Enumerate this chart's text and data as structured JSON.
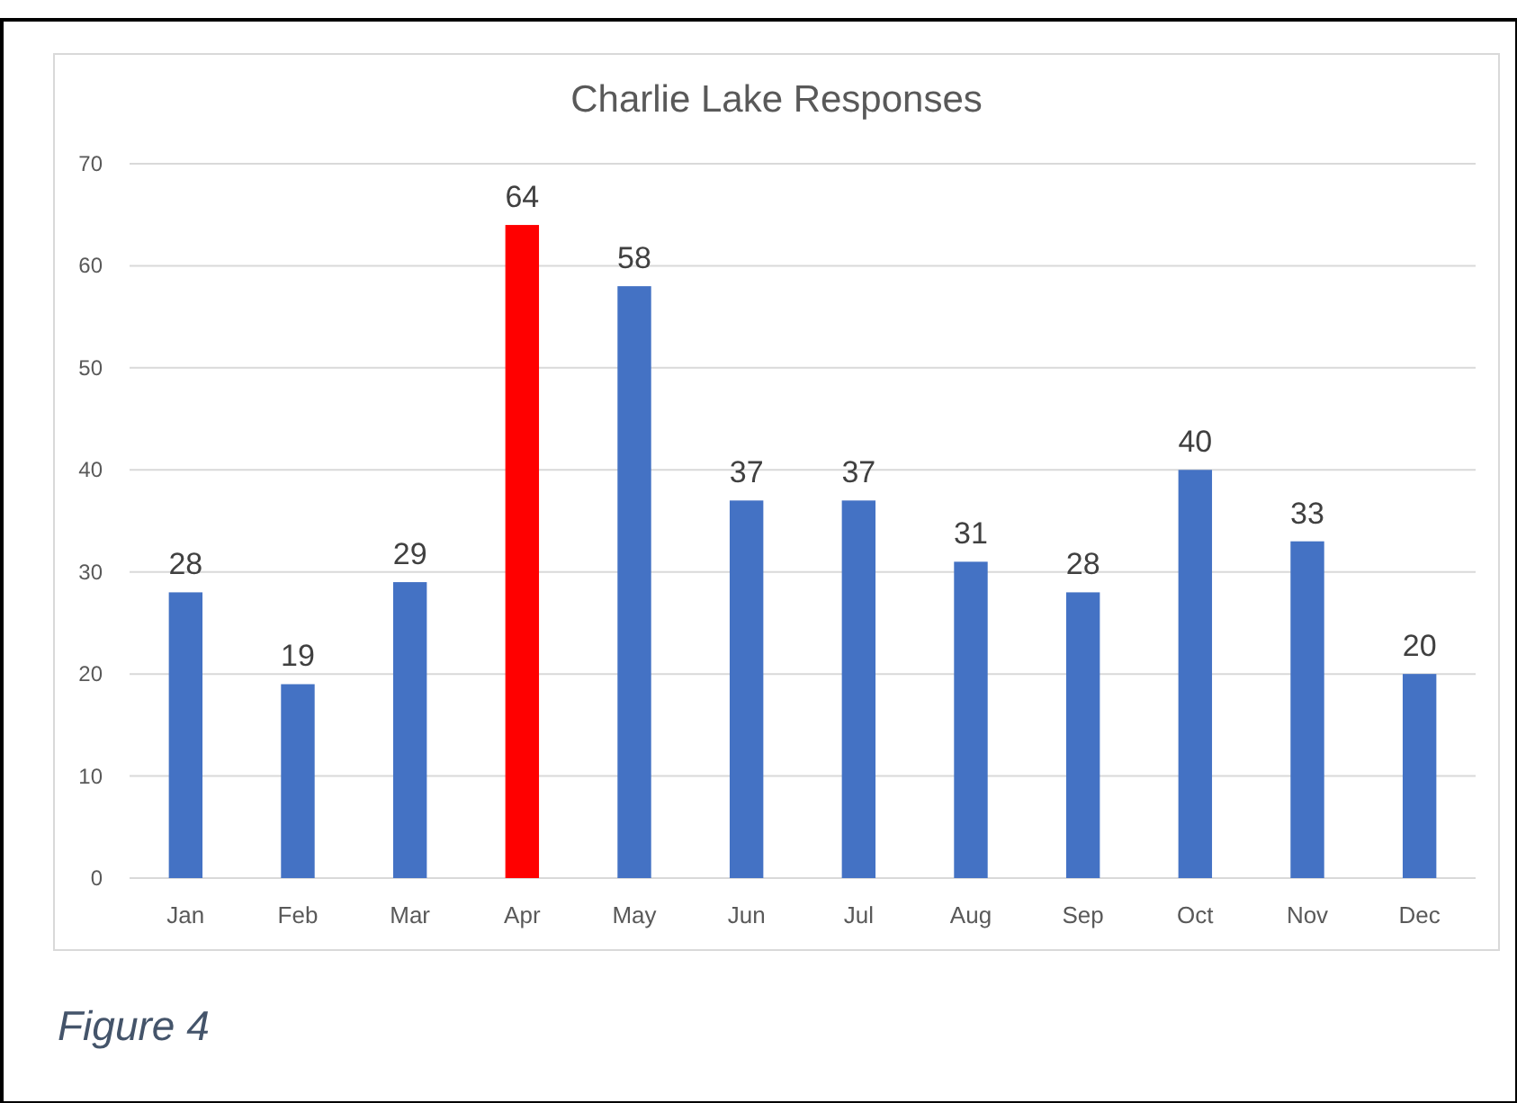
{
  "chart_data": {
    "type": "bar",
    "title": "Charlie Lake Responses",
    "categories": [
      "Jan",
      "Feb",
      "Mar",
      "Apr",
      "May",
      "Jun",
      "Jul",
      "Aug",
      "Sep",
      "Oct",
      "Nov",
      "Dec"
    ],
    "values": [
      28,
      19,
      29,
      64,
      58,
      37,
      37,
      31,
      28,
      40,
      33,
      20
    ],
    "colors": [
      "#4472c4",
      "#4472c4",
      "#4472c4",
      "#ff0000",
      "#4472c4",
      "#4472c4",
      "#4472c4",
      "#4472c4",
      "#4472c4",
      "#4472c4",
      "#4472c4",
      "#4472c4"
    ],
    "ylim": [
      0,
      70
    ],
    "yticks": [
      0,
      10,
      20,
      30,
      40,
      50,
      60,
      70
    ],
    "grid": "y",
    "data_labels": true,
    "annotations": [
      "Figure 4"
    ]
  }
}
